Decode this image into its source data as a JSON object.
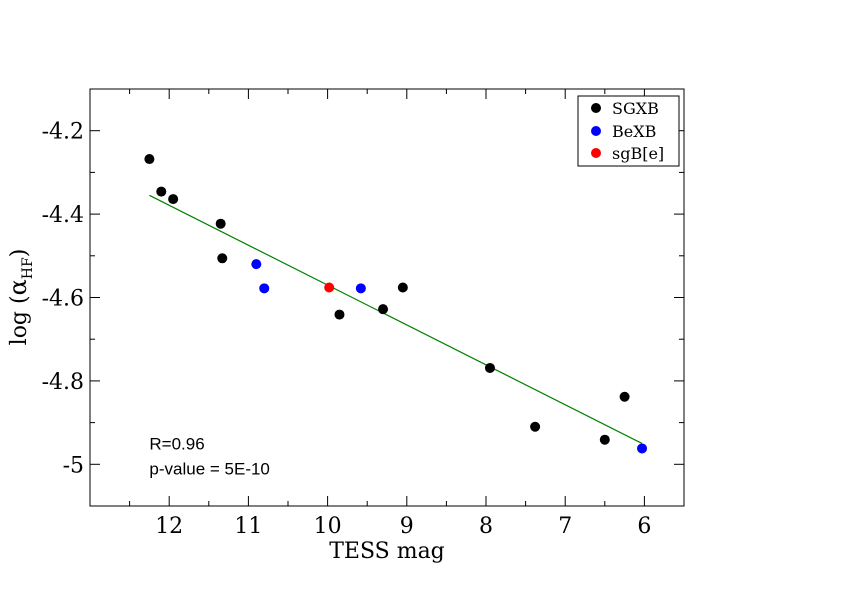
{
  "chart_data": {
    "type": "scatter",
    "title": "",
    "xlabel": "TESS mag",
    "ylabel": {
      "prefix": "log (",
      "alpha": "α",
      "subscript": "HF",
      "suffix": ")"
    },
    "xlim": [
      13,
      5.5
    ],
    "ylim": [
      -5.1,
      -4.1
    ],
    "x_ticks": [
      12,
      11,
      10,
      9,
      8,
      7,
      6
    ],
    "x_tick_labels": [
      "12",
      "11",
      "10",
      "9",
      "8",
      "7",
      "6"
    ],
    "y_ticks": [
      -4.2,
      -4.4,
      -4.6,
      -4.8,
      -5.0
    ],
    "y_tick_labels": [
      "-4.2",
      "-4.4",
      "-4.6",
      "-4.8",
      "-5"
    ],
    "grid": false,
    "legend_position": "top-right",
    "series": [
      {
        "name": "SGXB",
        "color": "#000000",
        "points": [
          {
            "x": 12.25,
            "y": -4.268
          },
          {
            "x": 12.1,
            "y": -4.346
          },
          {
            "x": 11.95,
            "y": -4.364
          },
          {
            "x": 11.35,
            "y": -4.423
          },
          {
            "x": 11.33,
            "y": -4.506
          },
          {
            "x": 9.85,
            "y": -4.641
          },
          {
            "x": 9.3,
            "y": -4.628
          },
          {
            "x": 9.05,
            "y": -4.576
          },
          {
            "x": 7.95,
            "y": -4.769
          },
          {
            "x": 7.38,
            "y": -4.91
          },
          {
            "x": 6.5,
            "y": -4.941
          },
          {
            "x": 6.25,
            "y": -4.838
          }
        ]
      },
      {
        "name": "BeXB",
        "color": "#0000ff",
        "points": [
          {
            "x": 10.9,
            "y": -4.52
          },
          {
            "x": 10.8,
            "y": -4.578
          },
          {
            "x": 9.58,
            "y": -4.578
          },
          {
            "x": 6.03,
            "y": -4.962
          }
        ]
      },
      {
        "name": "sgB[e]",
        "color": "#ff0000",
        "points": [
          {
            "x": 9.98,
            "y": -4.576
          }
        ]
      }
    ],
    "fit_line": {
      "x": [
        12.25,
        6.03
      ],
      "y": [
        -4.355,
        -4.95
      ],
      "color": "#008000"
    },
    "annotations": [
      {
        "text": "R=0.96",
        "x": 12.25,
        "y": -4.965
      },
      {
        "text": "p-value = 5E-10",
        "x": 12.25,
        "y": -5.025
      }
    ]
  }
}
